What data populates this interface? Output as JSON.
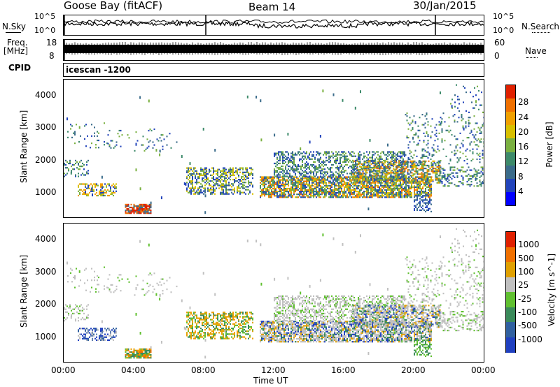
{
  "header": {
    "title": "Goose Bay (fitACF)",
    "beam": "Beam 14",
    "date": "30/Jan/2015"
  },
  "nsky": {
    "left_label": "N.Sky",
    "right_label": "N.Search",
    "left_ticks": [
      "10^5",
      "10^0"
    ],
    "right_ticks": [
      "10^5",
      "10^0"
    ]
  },
  "freq": {
    "left_label_1": "Freq.",
    "left_label_2": "[MHz]",
    "left_ticks": [
      "18",
      "8"
    ],
    "right_ticks": [
      "60",
      "0"
    ],
    "right_label": "Nave"
  },
  "cpid": {
    "label": "CPID",
    "value": "icescan -1200"
  },
  "chart_data": [
    {
      "type": "heatmap",
      "quantity": "Power",
      "ylabel": "Slant Range [km]",
      "yticks": [
        1000,
        2000,
        3000,
        4000
      ],
      "ylim": [
        200,
        4500
      ],
      "colorbar_label": "Power [dB]",
      "colorbar_ticks": [
        4,
        8,
        12,
        16,
        20,
        24,
        28
      ],
      "colorbar_colors": [
        "#0000ff",
        "#2244bb",
        "#3a6b8a",
        "#3d8a6a",
        "#7ab040",
        "#d8c000",
        "#f0a000",
        "#f07000",
        "#e02000"
      ]
    },
    {
      "type": "heatmap",
      "quantity": "Velocity",
      "ylabel": "Slant Range [km]",
      "yticks": [
        1000,
        2000,
        3000,
        4000
      ],
      "ylim": [
        200,
        4500
      ],
      "colorbar_label": "Velocity [m s^-1]",
      "colorbar_ticks": [
        1000,
        500,
        100,
        25,
        -25,
        -100,
        -500,
        -1000
      ],
      "colorbar_colors": [
        "#2040c0",
        "#3060a0",
        "#3a8a5a",
        "#60c030",
        "#c0c0c0",
        "#e0a000",
        "#f07000",
        "#e02000"
      ]
    }
  ],
  "xaxis": {
    "ticks": [
      "00:00",
      "04:00",
      "08:00",
      "12:00",
      "16:00",
      "20:00",
      "00:00"
    ],
    "label": "Time UT"
  }
}
